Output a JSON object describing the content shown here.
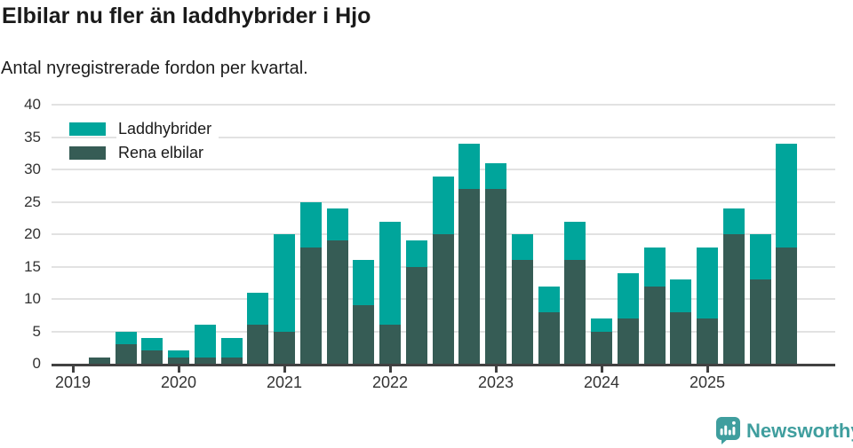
{
  "page": {
    "title": "Elbilar nu fler än laddhybrider i Hjo",
    "subtitle": "Antal nyregistrerade fordon per kvartal."
  },
  "chart_data": {
    "type": "bar",
    "stacked": true,
    "title": "Elbilar nu fler än laddhybrider i Hjo",
    "subtitle": "Antal nyregistrerade fordon per kvartal.",
    "categories": [
      "2019 Q1",
      "2019 Q2",
      "2019 Q3",
      "2019 Q4",
      "2020 Q1",
      "2020 Q2",
      "2020 Q3",
      "2020 Q4",
      "2021 Q1",
      "2021 Q2",
      "2021 Q3",
      "2021 Q4",
      "2022 Q1",
      "2022 Q2",
      "2022 Q3",
      "2022 Q4",
      "2023 Q1",
      "2023 Q2",
      "2023 Q3",
      "2023 Q4",
      "2024 Q1",
      "2024 Q2",
      "2024 Q3",
      "2024 Q4",
      "2025 Q1",
      "2025 Q2",
      "2025 Q3",
      "2025 Q4"
    ],
    "series": [
      {
        "name": "Rena elbilar",
        "color": "#365c55",
        "values": [
          0,
          1,
          3,
          2,
          1,
          1,
          1,
          6,
          5,
          18,
          19,
          9,
          6,
          15,
          20,
          27,
          27,
          16,
          8,
          16,
          5,
          7,
          12,
          8,
          7,
          20,
          13,
          18
        ]
      },
      {
        "name": "Laddhybrider",
        "color": "#00a59b",
        "values": [
          0,
          0,
          2,
          2,
          1,
          5,
          3,
          5,
          15,
          7,
          5,
          7,
          16,
          4,
          9,
          7,
          4,
          4,
          4,
          6,
          2,
          7,
          6,
          5,
          11,
          4,
          7,
          16
        ]
      }
    ],
    "totals": [
      0,
      1,
      5,
      4,
      2,
      6,
      4,
      11,
      20,
      25,
      24,
      16,
      22,
      19,
      29,
      34,
      31,
      20,
      12,
      22,
      7,
      14,
      18,
      13,
      18,
      24,
      20,
      34
    ],
    "ylim": [
      0,
      40
    ],
    "yticks": [
      0,
      5,
      10,
      15,
      20,
      25,
      30,
      35,
      40
    ],
    "xtick_labels": [
      "2019",
      "2020",
      "2021",
      "2022",
      "2023",
      "2024",
      "2025"
    ],
    "grid": true,
    "legend_position": "top-left"
  },
  "legend": {
    "items": [
      {
        "label": "Laddhybrider",
        "color": "#00a59b"
      },
      {
        "label": "Rena elbilar",
        "color": "#365c55"
      }
    ]
  },
  "footer": {
    "brand": "Newsworthy",
    "logo_icon": "newsworthy-chart-bubble-icon",
    "brand_color": "#3f9e9e"
  }
}
